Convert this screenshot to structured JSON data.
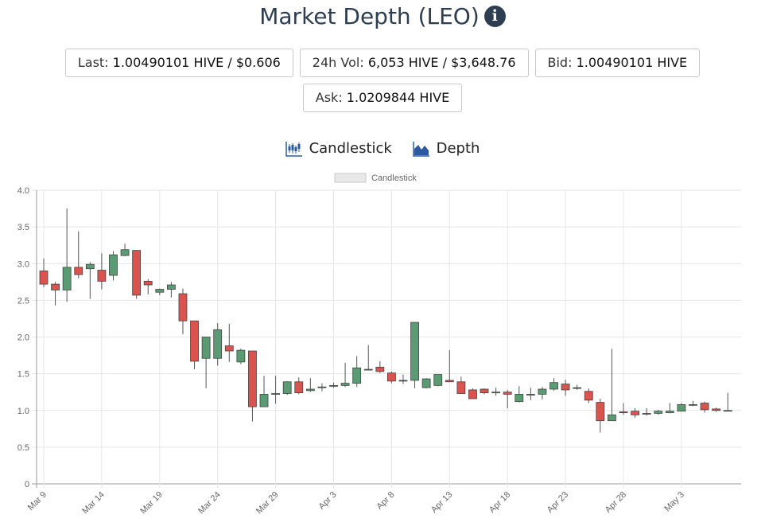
{
  "header": {
    "title": "Market Depth (LEO)",
    "info_icon": "info-icon"
  },
  "stats": {
    "last_label": "Last:",
    "last_value": "1.00490101 HIVE / $0.606",
    "vol_label": "24h Vol:",
    "vol_value": "6,053 HIVE / $3,648.76",
    "bid_label": "Bid:",
    "bid_value": "1.00490101 HIVE",
    "ask_label": "Ask:",
    "ask_value": "1.0209844 HIVE"
  },
  "toggles": {
    "candlestick_label": "Candlestick",
    "depth_label": "Depth"
  },
  "colors": {
    "up": "#5a9b74",
    "down": "#d9534f",
    "accent": "#2c3e50"
  },
  "chart_data": {
    "type": "candlestick",
    "legend": "Candlestick",
    "ylim": [
      0,
      4
    ],
    "yticks": [
      "0",
      "0.5",
      "1.0",
      "1.5",
      "2.0",
      "2.5",
      "3.0",
      "3.5",
      "4.0"
    ],
    "xticks": [
      {
        "day": 0,
        "label": "Mar 9"
      },
      {
        "day": 5,
        "label": "Mar 14"
      },
      {
        "day": 10,
        "label": "Mar 19"
      },
      {
        "day": 15,
        "label": "Mar 24"
      },
      {
        "day": 20,
        "label": "Mar 29"
      },
      {
        "day": 25,
        "label": "Apr 3"
      },
      {
        "day": 30,
        "label": "Apr 8"
      },
      {
        "day": 35,
        "label": "Apr 13"
      },
      {
        "day": 40,
        "label": "Apr 18"
      },
      {
        "day": 45,
        "label": "Apr 23"
      },
      {
        "day": 50,
        "label": "Apr 28"
      },
      {
        "day": 55,
        "label": "May 3"
      }
    ],
    "ohlc": [
      [
        2.9,
        3.07,
        2.68,
        2.72
      ],
      [
        2.72,
        2.75,
        2.43,
        2.64
      ],
      [
        2.64,
        3.75,
        2.48,
        2.95
      ],
      [
        2.95,
        3.44,
        2.8,
        2.85
      ],
      [
        2.93,
        3.02,
        2.52,
        2.99
      ],
      [
        2.91,
        3.14,
        2.65,
        2.76
      ],
      [
        2.84,
        3.17,
        2.77,
        3.12
      ],
      [
        3.11,
        3.27,
        3.1,
        3.19
      ],
      [
        3.18,
        3.18,
        2.52,
        2.57
      ],
      [
        2.76,
        2.79,
        2.58,
        2.71
      ],
      [
        2.61,
        2.66,
        2.57,
        2.65
      ],
      [
        2.65,
        2.75,
        2.54,
        2.71
      ],
      [
        2.59,
        2.66,
        2.04,
        2.22
      ],
      [
        2.22,
        2.22,
        1.56,
        1.67
      ],
      [
        1.71,
        2.0,
        1.3,
        2.0
      ],
      [
        1.71,
        2.19,
        1.61,
        2.1
      ],
      [
        1.88,
        2.18,
        1.66,
        1.81
      ],
      [
        1.66,
        1.84,
        1.63,
        1.82
      ],
      [
        1.81,
        1.81,
        0.85,
        1.05
      ],
      [
        1.05,
        1.47,
        1.05,
        1.22
      ],
      [
        1.23,
        1.47,
        1.09,
        1.23
      ],
      [
        1.23,
        1.4,
        1.21,
        1.39
      ],
      [
        1.39,
        1.45,
        1.22,
        1.24
      ],
      [
        1.27,
        1.44,
        1.25,
        1.29
      ],
      [
        1.31,
        1.37,
        1.26,
        1.32
      ],
      [
        1.33,
        1.38,
        1.31,
        1.34
      ],
      [
        1.34,
        1.65,
        1.32,
        1.37
      ],
      [
        1.37,
        1.74,
        1.32,
        1.58
      ],
      [
        1.56,
        1.89,
        1.55,
        1.56
      ],
      [
        1.59,
        1.67,
        1.51,
        1.53
      ],
      [
        1.51,
        1.53,
        1.37,
        1.4
      ],
      [
        1.4,
        1.49,
        1.36,
        1.41
      ],
      [
        1.41,
        2.2,
        1.3,
        2.2
      ],
      [
        1.31,
        1.44,
        1.3,
        1.43
      ],
      [
        1.34,
        1.49,
        1.33,
        1.49
      ],
      [
        1.41,
        1.82,
        1.39,
        1.39
      ],
      [
        1.39,
        1.46,
        1.23,
        1.23
      ],
      [
        1.28,
        1.3,
        1.16,
        1.16
      ],
      [
        1.29,
        1.3,
        1.22,
        1.24
      ],
      [
        1.25,
        1.31,
        1.2,
        1.25
      ],
      [
        1.25,
        1.28,
        1.03,
        1.22
      ],
      [
        1.12,
        1.33,
        1.11,
        1.22
      ],
      [
        1.22,
        1.31,
        1.14,
        1.22
      ],
      [
        1.22,
        1.32,
        1.15,
        1.29
      ],
      [
        1.29,
        1.44,
        1.27,
        1.38
      ],
      [
        1.36,
        1.42,
        1.2,
        1.28
      ],
      [
        1.31,
        1.35,
        1.28,
        1.31
      ],
      [
        1.26,
        1.3,
        1.1,
        1.14
      ],
      [
        1.11,
        1.16,
        0.7,
        0.86
      ],
      [
        0.86,
        1.84,
        0.86,
        0.94
      ],
      [
        0.98,
        1.1,
        0.94,
        0.97
      ],
      [
        0.99,
        1.03,
        0.9,
        0.94
      ],
      [
        0.96,
        1.03,
        0.93,
        0.95
      ],
      [
        0.96,
        1.01,
        0.94,
        0.99
      ],
      [
        0.97,
        1.1,
        0.96,
        0.99
      ],
      [
        0.99,
        1.1,
        0.99,
        1.08
      ],
      [
        1.08,
        1.13,
        1.06,
        1.08
      ],
      [
        1.1,
        1.12,
        0.97,
        1.01
      ],
      [
        1.02,
        1.04,
        0.98,
        1.0
      ],
      [
        1.0,
        1.24,
        0.99,
        1.0
      ]
    ]
  }
}
